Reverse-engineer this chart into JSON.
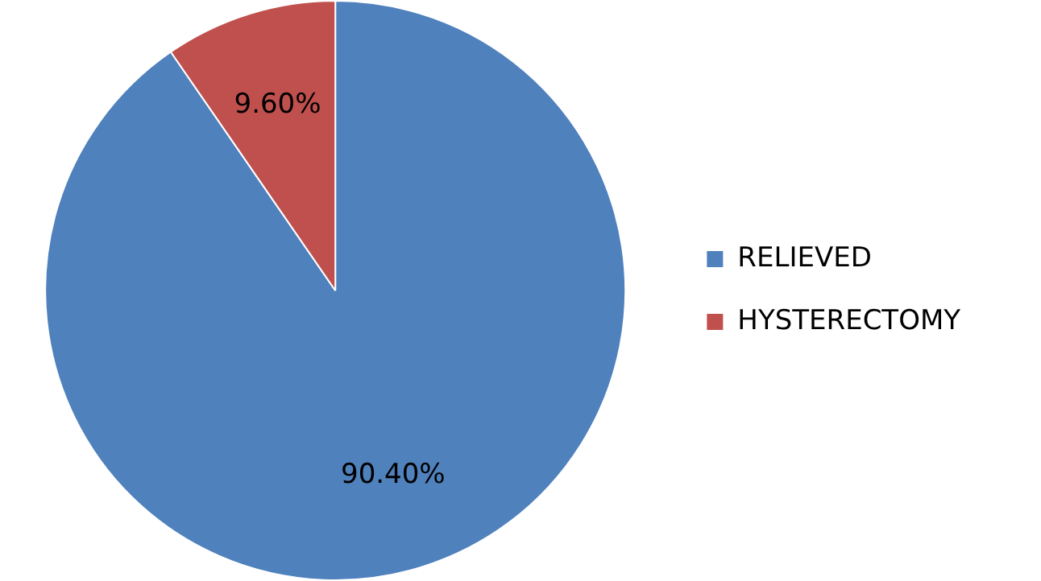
{
  "chart_data": {
    "type": "pie",
    "categories": [
      "RELIEVED",
      "HYSTERECTOMY"
    ],
    "values": [
      90.4,
      9.6
    ],
    "colors": [
      "#4f81bd",
      "#c0504d"
    ],
    "value_labels": [
      "90.40%",
      "9.60%"
    ],
    "legend": "right"
  }
}
